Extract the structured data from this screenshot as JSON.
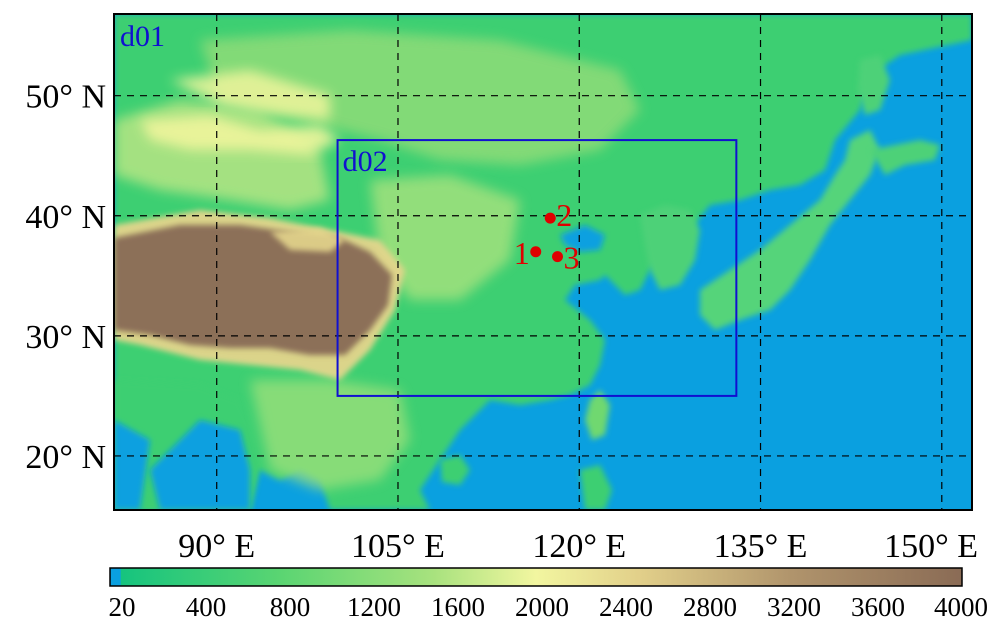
{
  "map": {
    "domain_outer_label": "d01",
    "domain_inner_label": "d02",
    "extent": {
      "lon_min": 81.5,
      "lon_max": 152.5,
      "lat_min": 15.5,
      "lat_max": 56.8
    },
    "inner_domain": {
      "lon_min": 100,
      "lon_max": 133,
      "lat_min": 25,
      "lat_max": 46.3
    },
    "lat_ticks": [
      {
        "value": 50,
        "label": "50° N"
      },
      {
        "value": 40,
        "label": "40° N"
      },
      {
        "value": 30,
        "label": "30° N"
      },
      {
        "value": 20,
        "label": "20° N"
      }
    ],
    "lon_ticks": [
      {
        "value": 90,
        "label": "90° E"
      },
      {
        "value": 105,
        "label": "105° E"
      },
      {
        "value": 120,
        "label": "120° E"
      },
      {
        "value": 135,
        "label": "135° E"
      },
      {
        "value": 150,
        "label": "150° E"
      }
    ],
    "stations": [
      {
        "id": "1",
        "lon": 116.4,
        "lat": 37.0
      },
      {
        "id": "2",
        "lon": 117.6,
        "lat": 39.8
      },
      {
        "id": "3",
        "lon": 118.2,
        "lat": 36.6
      }
    ],
    "colors": {
      "water": "#0aa0e0",
      "domain_box": "#1010d0",
      "station": "#e00000"
    }
  },
  "colorbar": {
    "labels": [
      "20",
      "400",
      "800",
      "1200",
      "1600",
      "2000",
      "2400",
      "2800",
      "3200",
      "3600",
      "4000"
    ],
    "colors": [
      "#0aa0e0",
      "#1ec87a",
      "#3dcf72",
      "#6fd870",
      "#a6e27c",
      "#f0f59c",
      "#e4d58c",
      "#c8b07a",
      "#aa8d68",
      "#8f7058"
    ]
  }
}
